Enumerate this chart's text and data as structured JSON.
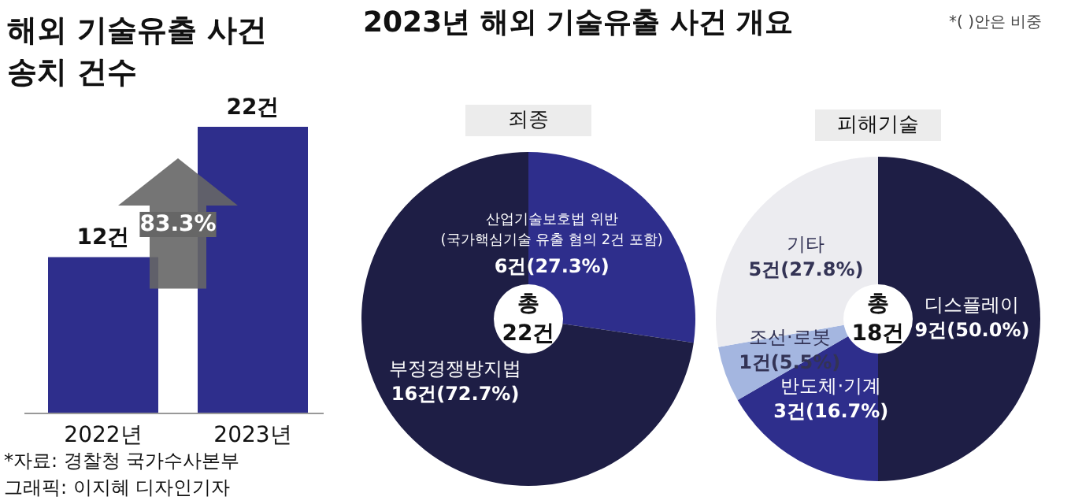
{
  "chart_data": [
    {
      "type": "bar",
      "title": "해외 기술유출 사건\n송치 건수",
      "categories": [
        "2022년",
        "2023년"
      ],
      "values": [
        12,
        22
      ],
      "color": "#2e2e8c",
      "value_labels": [
        "12건",
        "22건"
      ],
      "annotations": [
        "83.3%",
        "*자료: 경찰청 국가수사본부",
        "그래픽: 이지혜 디자인기자"
      ]
    },
    {
      "type": "donut",
      "title": "2023년 해외 기술유출 사건 개요",
      "subtitle": "죄종",
      "categories": [
        "산업기술보호법 위반\n(국가핵심기술 유출 혐의 2건 포함)",
        "부정경쟁방지법"
      ],
      "values": [
        6,
        16
      ],
      "colors": [
        "#2e2e8c",
        "#1e1e45"
      ],
      "value_labels": [
        "6건(27.3%)",
        "16건(72.7%)"
      ],
      "annotations": [
        "*( )안은 비중",
        "총\n22건"
      ]
    },
    {
      "type": "donut",
      "subtitle": "피해기술",
      "categories": [
        "디스플레이",
        "반도체·기계",
        "조선·로봇",
        "기타"
      ],
      "values": [
        9,
        3,
        1,
        5
      ],
      "colors": [
        "#1e1e45",
        "#2e2e8c",
        "#a4b6e0",
        "#ececf0"
      ],
      "value_labels": [
        "9건(50.0%)",
        "3건(16.7%)",
        "1건(5.5%)",
        "5건(27.8%)"
      ],
      "annotations": [
        "총\n18건"
      ]
    }
  ]
}
